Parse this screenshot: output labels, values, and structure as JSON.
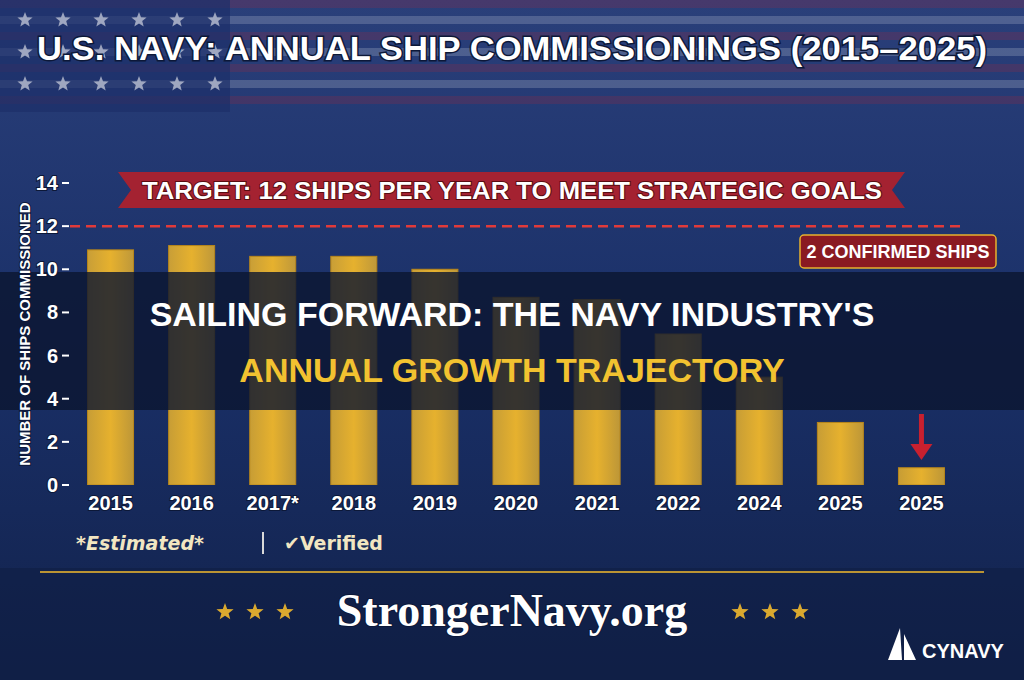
{
  "chart_data": {
    "type": "bar",
    "title": "U.S. NAVY: ANNUAL SHIP COMMISSIONINGS (2015–2025)",
    "y_label": "NUMBER OF SHIPS COMMISSIONED",
    "categories": [
      "2015",
      "2016",
      "2017*",
      "2018",
      "2019",
      "2020",
      "2021",
      "2022",
      "2024",
      "2025",
      "2025"
    ],
    "values": [
      10.9,
      11.1,
      10.6,
      10.6,
      10,
      8.7,
      8.6,
      7,
      5,
      2.9,
      0.8
    ],
    "color": "#e6b12e",
    "ylim": [
      0,
      14
    ],
    "yticks": [
      0,
      2,
      4,
      6,
      8,
      10,
      12,
      14
    ],
    "grid": false,
    "target": {
      "value": 12,
      "label": "TARGET: 12 SHIPS PER YEAR TO MEET STRATEGIC GOALS"
    },
    "annotations": [
      "2 CONFIRMED SHIPS"
    ],
    "footnotes": [
      "*Estimated*",
      "✔Verified"
    ],
    "source": "StrongerNavy.org"
  },
  "overlay": {
    "title_lines": [
      "SAILING FORWARD: THE NAVY INDUSTRY'S",
      "ANNUAL GROWTH TRAJECTORY"
    ],
    "logo": "CYNAVY"
  }
}
